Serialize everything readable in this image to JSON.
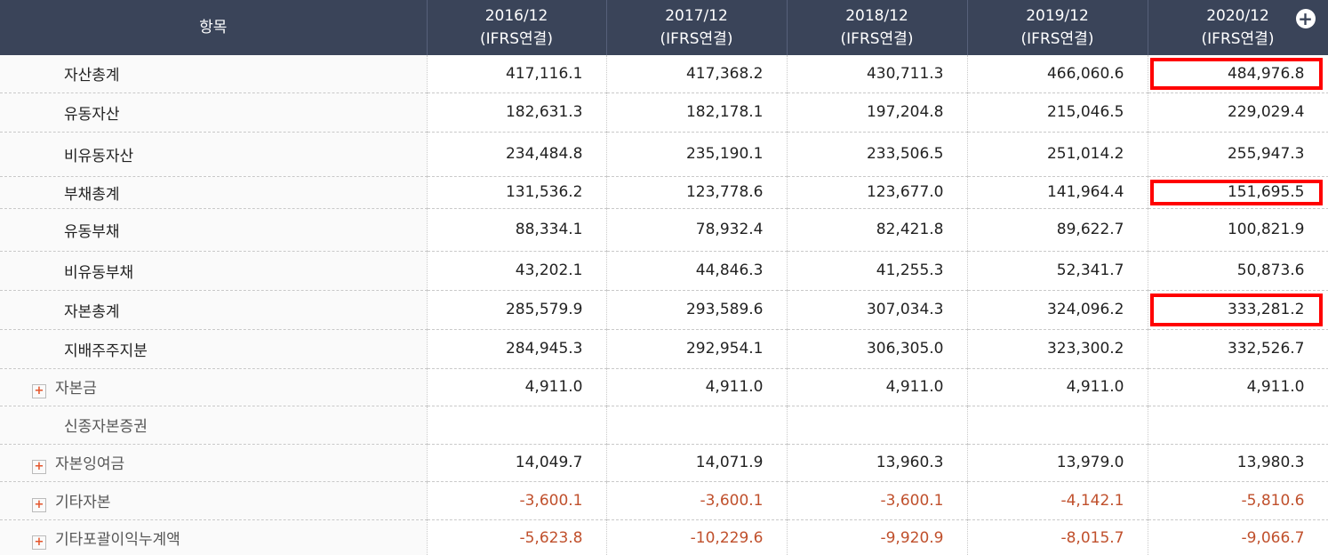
{
  "table": {
    "header": {
      "item": "항목",
      "columns": [
        {
          "period": "2016/12",
          "basis": "(IFRS연결)"
        },
        {
          "period": "2017/12",
          "basis": "(IFRS연결)"
        },
        {
          "period": "2018/12",
          "basis": "(IFRS연결)"
        },
        {
          "period": "2019/12",
          "basis": "(IFRS연결)"
        },
        {
          "period": "2020/12",
          "basis": "(IFRS연결)"
        }
      ]
    },
    "rows": [
      {
        "label": "자산총계",
        "values": [
          "417,116.1",
          "417,368.2",
          "430,711.3",
          "466,060.6",
          "484,976.8"
        ]
      },
      {
        "label": "유동자산",
        "values": [
          "182,631.3",
          "182,178.1",
          "197,204.8",
          "215,046.5",
          "229,029.4"
        ]
      },
      {
        "label": "비유동자산",
        "values": [
          "234,484.8",
          "235,190.1",
          "233,506.5",
          "251,014.2",
          "255,947.3"
        ]
      },
      {
        "label": "부채총계",
        "values": [
          "131,536.2",
          "123,778.6",
          "123,677.0",
          "141,964.4",
          "151,695.5"
        ]
      },
      {
        "label": "유동부채",
        "values": [
          "88,334.1",
          "78,932.4",
          "82,421.8",
          "89,622.7",
          "100,821.9"
        ]
      },
      {
        "label": "비유동부채",
        "values": [
          "43,202.1",
          "44,846.3",
          "41,255.3",
          "52,341.7",
          "50,873.6"
        ]
      },
      {
        "label": "자본총계",
        "values": [
          "285,579.9",
          "293,589.6",
          "307,034.3",
          "324,096.2",
          "333,281.2"
        ]
      },
      {
        "label": "지배주주지분",
        "values": [
          "284,945.3",
          "292,954.1",
          "306,305.0",
          "323,300.2",
          "332,526.7"
        ]
      },
      {
        "label": "자본금",
        "expandable": true,
        "values": [
          "4,911.0",
          "4,911.0",
          "4,911.0",
          "4,911.0",
          "4,911.0"
        ]
      },
      {
        "label": "신종자본증권",
        "values": [
          null,
          null,
          null,
          null,
          null
        ]
      },
      {
        "label": "자본잉여금",
        "expandable": true,
        "values": [
          "14,049.7",
          "14,071.9",
          "13,960.3",
          "13,979.0",
          "13,980.3"
        ]
      },
      {
        "label": "기타자본",
        "expandable": true,
        "values": [
          "-3,600.1",
          "-3,600.1",
          "-3,600.1",
          "-4,142.1",
          "-5,810.6"
        ]
      },
      {
        "label": "기타포괄이익누계액",
        "expandable": true,
        "values": [
          "-5,623.8",
          "-10,229.6",
          "-9,920.9",
          "-8,015.7",
          "-9,066.7"
        ]
      }
    ],
    "highlighted_cells": [
      {
        "row": 0,
        "col": 4
      },
      {
        "row": 3,
        "col": 4
      },
      {
        "row": 6,
        "col": 4
      }
    ]
  }
}
